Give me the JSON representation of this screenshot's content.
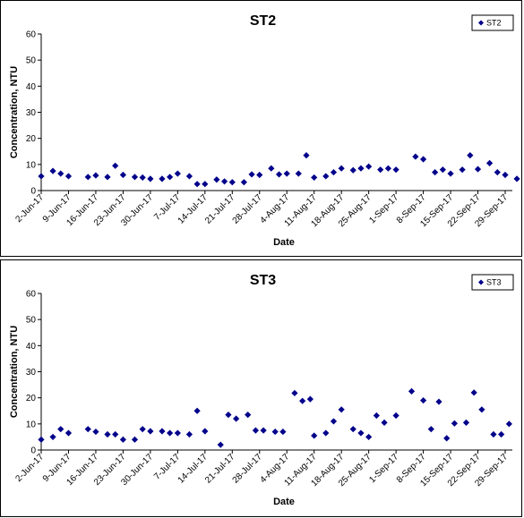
{
  "chart_data": [
    {
      "type": "scatter",
      "title": "ST2",
      "xlabel": "Date",
      "ylabel": "Concentration, NTU",
      "ylim": [
        0,
        60
      ],
      "yticks": [
        0,
        10,
        20,
        30,
        40,
        50,
        60
      ],
      "xlim": [
        "2017-06-02",
        "2017-09-29"
      ],
      "xtick_labels": [
        "2-Jun-17",
        "9-Jun-17",
        "16-Jun-17",
        "23-Jun-17",
        "30-Jun-17",
        "7-Jul-17",
        "14-Jul-17",
        "21-Jul-17",
        "28-Jul-17",
        "4-Aug-17",
        "11-Aug-17",
        "18-Aug-17",
        "25-Aug-17",
        "1-Sep-17",
        "8-Sep-17",
        "15-Sep-17",
        "22-Sep-17",
        "29-Sep-17"
      ],
      "legend": "top-right",
      "marker_color": "#00008B",
      "series": [
        {
          "name": "ST2",
          "points": [
            [
              "2017-06-02",
              5.5
            ],
            [
              "2017-06-05",
              7.5
            ],
            [
              "2017-06-07",
              6.5
            ],
            [
              "2017-06-09",
              5.5
            ],
            [
              "2017-06-14",
              5.2
            ],
            [
              "2017-06-16",
              5.8
            ],
            [
              "2017-06-19",
              5.2
            ],
            [
              "2017-06-21",
              9.5
            ],
            [
              "2017-06-23",
              6.0
            ],
            [
              "2017-06-26",
              5.2
            ],
            [
              "2017-06-28",
              5.0
            ],
            [
              "2017-06-30",
              4.5
            ],
            [
              "2017-07-03",
              4.5
            ],
            [
              "2017-07-05",
              5.2
            ],
            [
              "2017-07-07",
              6.5
            ],
            [
              "2017-07-10",
              5.5
            ],
            [
              "2017-07-12",
              2.5
            ],
            [
              "2017-07-14",
              2.5
            ],
            [
              "2017-07-17",
              4.2
            ],
            [
              "2017-07-19",
              3.5
            ],
            [
              "2017-07-21",
              3.2
            ],
            [
              "2017-07-24",
              3.2
            ],
            [
              "2017-07-26",
              6.2
            ],
            [
              "2017-07-28",
              6.0
            ],
            [
              "2017-07-31",
              8.5
            ],
            [
              "2017-08-02",
              6.2
            ],
            [
              "2017-08-04",
              6.5
            ],
            [
              "2017-08-07",
              6.5
            ],
            [
              "2017-08-09",
              13.5
            ],
            [
              "2017-08-11",
              5.0
            ],
            [
              "2017-08-14",
              5.5
            ],
            [
              "2017-08-16",
              7.0
            ],
            [
              "2017-08-18",
              8.5
            ],
            [
              "2017-08-21",
              7.8
            ],
            [
              "2017-08-23",
              8.5
            ],
            [
              "2017-08-25",
              9.2
            ],
            [
              "2017-08-28",
              8.0
            ],
            [
              "2017-08-30",
              8.5
            ],
            [
              "2017-09-01",
              8.0
            ],
            [
              "2017-09-06",
              13.0
            ],
            [
              "2017-09-08",
              12.0
            ],
            [
              "2017-09-11",
              7.0
            ],
            [
              "2017-09-13",
              8.0
            ],
            [
              "2017-09-15",
              6.5
            ],
            [
              "2017-09-18",
              8.0
            ],
            [
              "2017-09-20",
              13.5
            ],
            [
              "2017-09-22",
              8.2
            ],
            [
              "2017-09-25",
              10.5
            ],
            [
              "2017-09-27",
              7.0
            ],
            [
              "2017-09-29",
              6.0
            ],
            [
              "2017-10-02",
              4.5
            ]
          ]
        }
      ]
    },
    {
      "type": "scatter",
      "title": "ST3",
      "xlabel": "Date",
      "ylabel": "Concentration, NTU",
      "ylim": [
        0,
        60
      ],
      "yticks": [
        0,
        10,
        20,
        30,
        40,
        50,
        60
      ],
      "xlim": [
        "2017-06-02",
        "2017-09-29"
      ],
      "xtick_labels": [
        "2-Jun-17",
        "9-Jun-17",
        "16-Jun-17",
        "23-Jun-17",
        "30-Jun-17",
        "7-Jul-17",
        "14-Jul-17",
        "21-Jul-17",
        "28-Jul-17",
        "4-Aug-17",
        "11-Aug-17",
        "18-Aug-17",
        "25-Aug-17",
        "1-Sep-17",
        "8-Sep-17",
        "15-Sep-17",
        "22-Sep-17",
        "29-Sep-17"
      ],
      "legend": "top-right",
      "marker_color": "#00008B",
      "series": [
        {
          "name": "ST3",
          "points": [
            [
              "2017-06-02",
              4.0
            ],
            [
              "2017-06-05",
              5.0
            ],
            [
              "2017-06-07",
              8.0
            ],
            [
              "2017-06-09",
              6.5
            ],
            [
              "2017-06-14",
              8.0
            ],
            [
              "2017-06-16",
              7.0
            ],
            [
              "2017-06-19",
              6.0
            ],
            [
              "2017-06-21",
              6.0
            ],
            [
              "2017-06-23",
              4.0
            ],
            [
              "2017-06-26",
              4.0
            ],
            [
              "2017-06-28",
              8.0
            ],
            [
              "2017-06-30",
              7.2
            ],
            [
              "2017-07-03",
              7.2
            ],
            [
              "2017-07-05",
              6.5
            ],
            [
              "2017-07-07",
              6.5
            ],
            [
              "2017-07-10",
              6.0
            ],
            [
              "2017-07-12",
              15.0
            ],
            [
              "2017-07-14",
              7.2
            ],
            [
              "2017-07-18",
              2.0
            ],
            [
              "2017-07-20",
              13.5
            ],
            [
              "2017-07-22",
              12.0
            ],
            [
              "2017-07-25",
              13.5
            ],
            [
              "2017-07-27",
              7.5
            ],
            [
              "2017-07-29",
              7.5
            ],
            [
              "2017-08-01",
              7.0
            ],
            [
              "2017-08-03",
              7.0
            ],
            [
              "2017-08-06",
              21.8
            ],
            [
              "2017-08-08",
              18.8
            ],
            [
              "2017-08-10",
              19.5
            ],
            [
              "2017-08-11",
              5.5
            ],
            [
              "2017-08-14",
              6.5
            ],
            [
              "2017-08-16",
              11.0
            ],
            [
              "2017-08-18",
              15.5
            ],
            [
              "2017-08-21",
              8.0
            ],
            [
              "2017-08-23",
              6.5
            ],
            [
              "2017-08-25",
              5.0
            ],
            [
              "2017-08-27",
              13.2
            ],
            [
              "2017-08-29",
              10.5
            ],
            [
              "2017-09-01",
              13.2
            ],
            [
              "2017-09-05",
              22.5
            ],
            [
              "2017-09-08",
              19.0
            ],
            [
              "2017-09-10",
              8.0
            ],
            [
              "2017-09-12",
              18.5
            ],
            [
              "2017-09-14",
              4.5
            ],
            [
              "2017-09-16",
              10.2
            ],
            [
              "2017-09-19",
              10.5
            ],
            [
              "2017-09-21",
              22.0
            ],
            [
              "2017-09-23",
              15.5
            ],
            [
              "2017-09-26",
              6.0
            ],
            [
              "2017-09-28",
              6.0
            ],
            [
              "2017-09-30",
              10.0
            ]
          ]
        }
      ]
    }
  ]
}
